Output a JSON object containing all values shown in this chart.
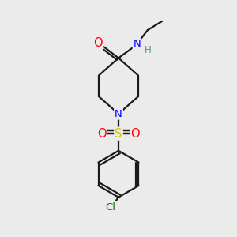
{
  "background_color": "#ebebeb",
  "bond_color": "#1a1a1a",
  "atom_colors": {
    "O": "#ff0000",
    "N": "#0000ff",
    "S": "#cccc00",
    "Cl": "#008000",
    "H": "#4a9a9a",
    "C": "#1a1a1a"
  },
  "figsize": [
    3.0,
    3.0
  ],
  "dpi": 100,
  "lw": 1.6,
  "fontsize": 9.5
}
